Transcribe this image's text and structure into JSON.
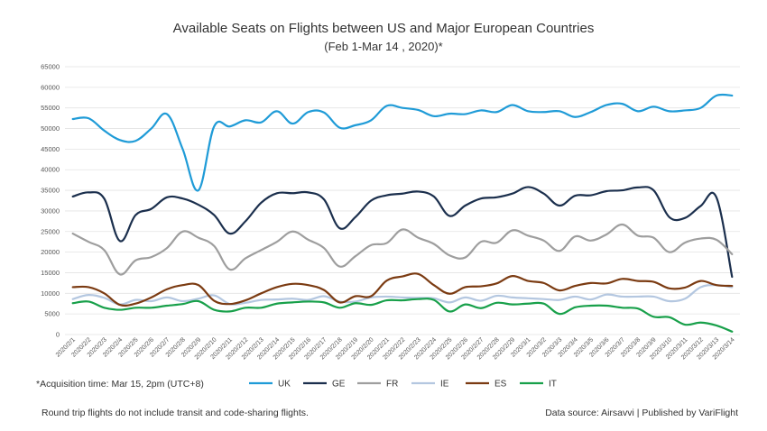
{
  "chart_data": {
    "type": "line",
    "title": "Available Seats on Flights between US and Major European Countries",
    "subtitle": "(Feb 1-Mar 14 , 2020)*",
    "ylim": [
      0,
      65000
    ],
    "yticks": [
      "0",
      "5000",
      "10000",
      "15000",
      "20000",
      "25000",
      "30000",
      "35000",
      "40000",
      "45000",
      "50000",
      "55000",
      "60000",
      "65000"
    ],
    "grid": true,
    "categories": [
      "2020/2/1",
      "2020/2/2",
      "2020/2/3",
      "2020/2/4",
      "2020/2/5",
      "2020/2/6",
      "2020/2/7",
      "2020/2/8",
      "2020/2/9",
      "2020/2/10",
      "2020/2/11",
      "2020/2/12",
      "2020/2/13",
      "2020/2/14",
      "2020/2/15",
      "2020/2/16",
      "2020/2/17",
      "2020/2/18",
      "2020/2/19",
      "2020/2/20",
      "2020/2/21",
      "2020/2/22",
      "2020/2/23",
      "2020/2/24",
      "2020/2/25",
      "2020/2/26",
      "2020/2/27",
      "2020/2/28",
      "2020/2/29",
      "2020/3/1",
      "2020/3/2",
      "2020/3/3",
      "2020/3/4",
      "2020/3/5",
      "2020/3/6",
      "2020/3/7",
      "2020/3/8",
      "2020/3/9",
      "2020/3/10",
      "2020/3/11",
      "2020/3/12",
      "2020/3/13",
      "2020/3/14"
    ],
    "series": [
      {
        "name": "UK",
        "color": "#1f9bd7",
        "values": [
          52300,
          52500,
          49500,
          47200,
          47000,
          50000,
          53500,
          45000,
          35000,
          50500,
          50500,
          52000,
          51500,
          54200,
          51200,
          54000,
          53900,
          50200,
          50800,
          52000,
          55500,
          55000,
          54500,
          53000,
          53600,
          53500,
          54400,
          54000,
          55700,
          54200,
          54000,
          54200,
          52800,
          54000,
          55700,
          56000,
          54200,
          55300,
          54200,
          54400,
          55000,
          58000,
          58000
        ]
      },
      {
        "name": "GE",
        "color": "#1b2f4d",
        "values": [
          33500,
          34500,
          33000,
          22700,
          29000,
          30500,
          33300,
          33000,
          31500,
          29000,
          24500,
          27500,
          32000,
          34300,
          34300,
          34500,
          32800,
          25800,
          28500,
          32500,
          33800,
          34200,
          34700,
          33500,
          28800,
          31300,
          33000,
          33300,
          34200,
          35800,
          34200,
          31300,
          33700,
          33800,
          34800,
          35000,
          35700,
          35000,
          28500,
          28300,
          31200,
          33300,
          14000
        ]
      },
      {
        "name": "FR",
        "color": "#9e9e9e",
        "values": [
          24500,
          22500,
          20500,
          14600,
          18000,
          18800,
          21000,
          25000,
          23500,
          21500,
          15800,
          18500,
          20500,
          22500,
          25000,
          23000,
          21000,
          16500,
          19000,
          21700,
          22200,
          25500,
          23500,
          22000,
          19200,
          18700,
          22500,
          22300,
          25300,
          24000,
          22800,
          20300,
          23800,
          22800,
          24300,
          26700,
          24000,
          23500,
          20000,
          22300,
          23300,
          23000,
          19500
        ]
      },
      {
        "name": "IE",
        "color": "#b4c7e0",
        "values": [
          8600,
          9600,
          8900,
          7300,
          8400,
          8100,
          9000,
          8100,
          8700,
          9500,
          7400,
          7700,
          8400,
          8500,
          8700,
          8400,
          9300,
          8000,
          8000,
          9000,
          9200,
          9000,
          8900,
          8800,
          7800,
          9000,
          8200,
          9400,
          9000,
          8800,
          8600,
          8400,
          9200,
          8500,
          9700,
          9200,
          9200,
          9200,
          8100,
          8700,
          11500,
          12000,
          11500
        ]
      },
      {
        "name": "ES",
        "color": "#7b3b12",
        "values": [
          11500,
          11500,
          10000,
          7200,
          7500,
          9000,
          11000,
          12000,
          12000,
          8200,
          7400,
          8300,
          10000,
          11500,
          12300,
          12000,
          10800,
          7800,
          9300,
          9300,
          13100,
          14100,
          14700,
          12000,
          9900,
          11500,
          11700,
          12400,
          14200,
          13000,
          12500,
          10700,
          11800,
          12500,
          12400,
          13500,
          13000,
          12800,
          11200,
          11400,
          13000,
          12000,
          11800
        ]
      },
      {
        "name": "IT",
        "color": "#18a04a",
        "values": [
          7600,
          8000,
          6500,
          6000,
          6500,
          6500,
          7000,
          7400,
          8100,
          6000,
          5600,
          6500,
          6500,
          7500,
          7800,
          8000,
          7800,
          6500,
          7600,
          7200,
          8300,
          8300,
          8600,
          8400,
          5600,
          7300,
          6400,
          7700,
          7300,
          7500,
          7500,
          5000,
          6600,
          7000,
          7000,
          6500,
          6300,
          4300,
          4200,
          2400,
          2900,
          2200,
          700
        ]
      }
    ]
  },
  "note": "*Acquisition time: Mar 15, 2pm  (UTC+8)",
  "footer_left": "Round trip flights do not include transit and code-sharing flights.",
  "footer_right": "Data source: Airsavvi  |  Published by VariFlight"
}
